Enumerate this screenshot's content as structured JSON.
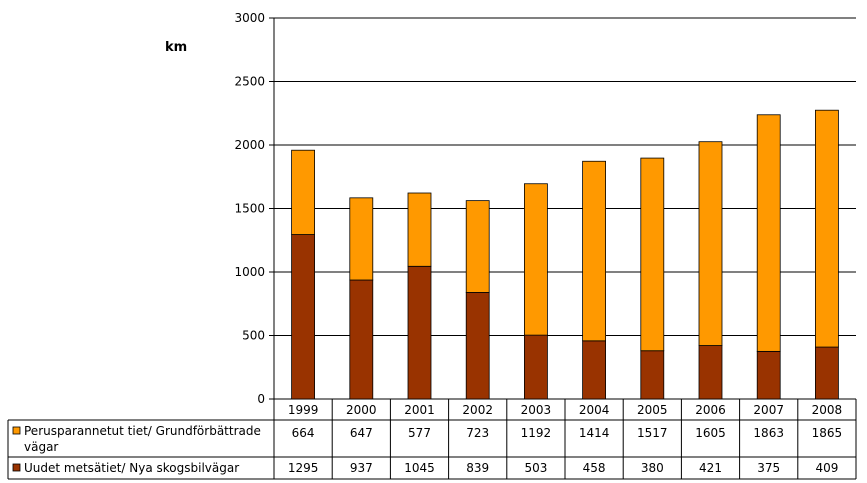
{
  "chart_data": {
    "type": "bar",
    "stacked": true,
    "ylabel": "km",
    "ylim": [
      0,
      3000
    ],
    "yticks": [
      0,
      500,
      1000,
      1500,
      2000,
      2500,
      3000
    ],
    "grid": true,
    "categories": [
      "1999",
      "2000",
      "2001",
      "2002",
      "2003",
      "2004",
      "2005",
      "2006",
      "2007",
      "2008"
    ],
    "series": [
      {
        "name": "Uudet metsätiet/ Nya skogsbilvägar",
        "color": "#993300",
        "values": [
          1295,
          937,
          1045,
          839,
          503,
          458,
          380,
          421,
          375,
          409
        ]
      },
      {
        "name_line1": "Perusparannetut tiet/ Grundförbättrade",
        "name_line2": "vägar",
        "color": "#FF9900",
        "values": [
          664,
          647,
          577,
          723,
          1192,
          1414,
          1517,
          1605,
          1863,
          1865
        ]
      }
    ]
  }
}
